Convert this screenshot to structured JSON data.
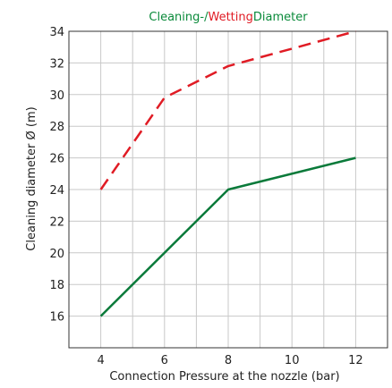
{
  "chart_data": {
    "type": "line",
    "title_parts": [
      {
        "text": "Cleaning-/",
        "color": "#0a8a3a"
      },
      {
        "text": "Wetting",
        "color": "#e01b24"
      },
      {
        "text": "Diameter",
        "color": "#0a8a3a"
      }
    ],
    "xlabel": "Connection Pressure at the nozzle (bar)",
    "ylabel": "Cleaning diameter Ø (m)",
    "xlim": [
      3,
      13
    ],
    "ylim": [
      14,
      34
    ],
    "xticks": [
      4,
      6,
      8,
      10,
      12
    ],
    "yticks": [
      16,
      18,
      20,
      22,
      24,
      26,
      28,
      30,
      32,
      34
    ],
    "grid": true,
    "series": [
      {
        "color": "#e01b24",
        "style": "dashed",
        "x": [
          4,
          6,
          8,
          12
        ],
        "y": [
          24,
          29.8,
          31.8,
          34
        ]
      },
      {
        "color": "#0a7a3a",
        "style": "solid",
        "x": [
          4,
          8,
          12
        ],
        "y": [
          16,
          24,
          26
        ]
      }
    ]
  }
}
